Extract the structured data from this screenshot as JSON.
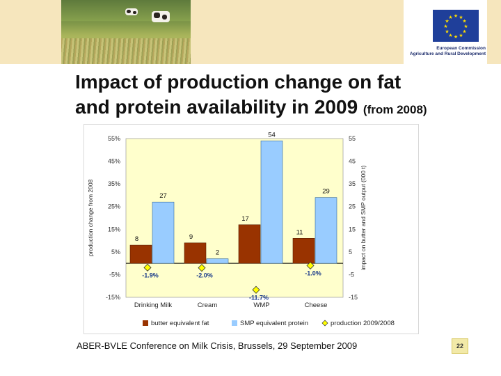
{
  "header": {
    "eu_commission": "European Commission",
    "eu_dg": "Agriculture and Rural Development"
  },
  "slide": {
    "title_line1": "Impact of production change on fat",
    "title_line2": "and protein availability in 2009",
    "title_sub": "(from 2008)"
  },
  "footer": {
    "text": "ABER-BVLE Conference on Milk Crisis, Brussels, 29 September 2009",
    "page": "22"
  },
  "colors": {
    "butter": "#993300",
    "smp": "#99ccff",
    "production": "#ffff00",
    "plot_bg": "#ffffcc"
  },
  "chart_data": {
    "type": "bar",
    "categories": [
      "Drinking Milk",
      "Cream",
      "WMP",
      "Cheese"
    ],
    "series": [
      {
        "name": "butter equivalent fat",
        "axis": "right",
        "values": [
          8,
          9,
          17,
          11
        ],
        "labels": [
          "8",
          "9",
          "17",
          "11"
        ]
      },
      {
        "name": "SMP equivalent protein",
        "axis": "right",
        "values": [
          27,
          2,
          54,
          29
        ],
        "labels": [
          "27",
          "2",
          "54",
          "29"
        ]
      },
      {
        "name": "production 2009/2008",
        "axis": "left",
        "type": "scatter",
        "values": [
          -1.9,
          -2.0,
          -11.7,
          -1.0
        ],
        "labels": [
          "-1.9%",
          "-2.0%",
          "-11.7%",
          "-1.0%"
        ]
      }
    ],
    "left_axis": {
      "label": "production change from 2008",
      "ticks": [
        "55%",
        "45%",
        "35%",
        "25%",
        "15%",
        "5%",
        "-5%",
        "-15%"
      ],
      "range": [
        -15,
        55
      ]
    },
    "right_axis": {
      "label": "impact on butter and SMP output (000 t)",
      "ticks": [
        "55",
        "45",
        "35",
        "25",
        "15",
        "5",
        "-5",
        "-15"
      ],
      "range": [
        -15,
        55
      ]
    },
    "tick_values": [
      55,
      45,
      35,
      25,
      15,
      5,
      -5,
      -15
    ],
    "legend": "bottom"
  }
}
